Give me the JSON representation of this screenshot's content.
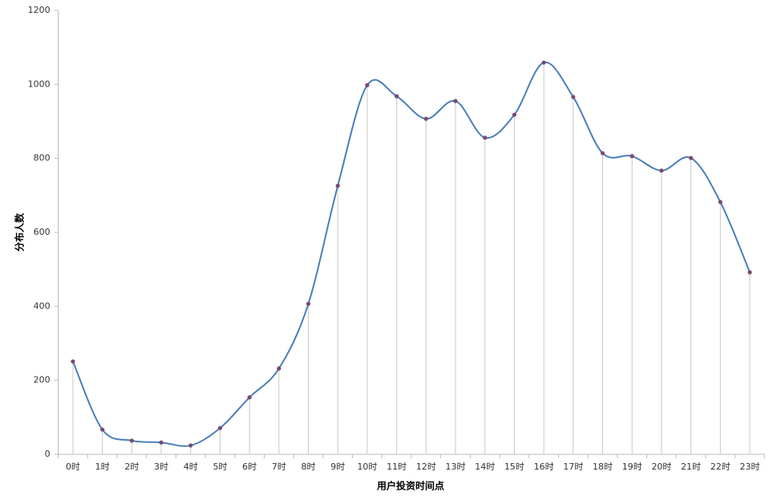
{
  "chart_data": {
    "type": "line",
    "smooth": true,
    "drop_lines": true,
    "x_label": "用户投资时间点",
    "y_label": "分布人数",
    "categories": [
      "0时",
      "1时",
      "2时",
      "3时",
      "4时",
      "5时",
      "6时",
      "7时",
      "8时",
      "9时",
      "10时",
      "11时",
      "12时",
      "13时",
      "14时",
      "15时",
      "16时",
      "17时",
      "18时",
      "19时",
      "20时",
      "21时",
      "22时",
      "23时"
    ],
    "series": [
      {
        "name": "分布人数",
        "color": "#4a7ebb",
        "marker_color": "#7a4a6e",
        "values": [
          251,
          67,
          37,
          32,
          24,
          71,
          154,
          232,
          407,
          726,
          998,
          968,
          907,
          955,
          856,
          918,
          1059,
          966,
          814,
          806,
          767,
          801,
          682,
          492
        ]
      }
    ],
    "ylim": [
      0,
      1200
    ],
    "yticks": [
      0,
      200,
      400,
      600,
      800,
      1000,
      1200
    ]
  }
}
